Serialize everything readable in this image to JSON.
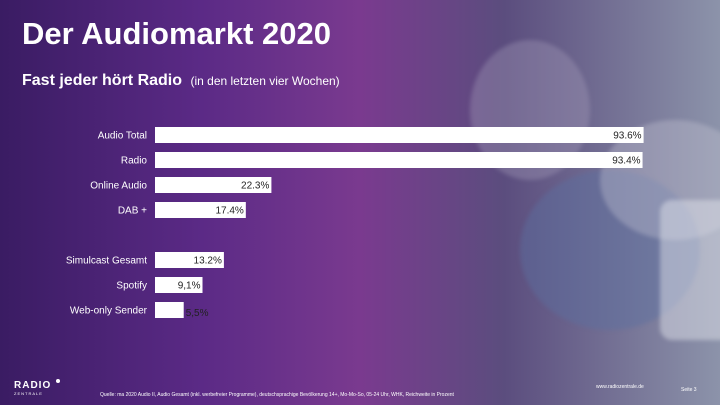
{
  "title": "Der Audiomarkt 2020",
  "subtitle": "Fast jeder hört Radio",
  "subtitle_note": "(in den letzten vier Wochen)",
  "chart_data": {
    "type": "bar",
    "orientation": "horizontal",
    "categories": [
      "Audio Total",
      "Radio",
      "Online Audio",
      "DAB +",
      "Simulcast Gesamt",
      "Spotify",
      "Web-only Sender"
    ],
    "values": [
      93.6,
      93.4,
      22.3,
      17.4,
      13.2,
      9.1,
      5.5
    ],
    "value_labels": [
      "93.6%",
      "93.4%",
      "22.3%",
      "17.4%",
      "13.2%",
      "9,1%",
      "5,5%"
    ],
    "xlim": [
      0,
      100
    ],
    "grid": false,
    "bar_color": "#ffffff"
  },
  "footer": {
    "source": "Quelle: ma 2020 Audio II, Audio Gesamt (inkl. werbefreier Programme), deutschsprachige Bevölkerung 14+, Mo-Mo-So, 05-24 Uhr, WHK, Reichweite in Prozent",
    "url": "www.radiozentrale.de",
    "page": "Seite 3"
  },
  "logo": {
    "word": "RADIO",
    "sub": "ZENTRALE"
  }
}
